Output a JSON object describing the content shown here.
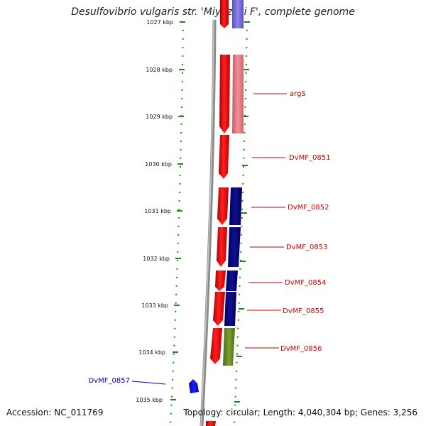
{
  "title": "Desulfovibrio vulgaris str. 'Miyazaki F', complete genome",
  "accession_text": "Accession: NC_011769",
  "summary_text": "Topology: circular; Length: 4,040,304 bp; Genes: 3,256",
  "axis_ticks": [
    "1027 kbp",
    "1028 kbp",
    "1029 kbp",
    "1030 kbp",
    "1031 kbp",
    "1032 kbp",
    "1033 kbp",
    "1034 kbp",
    "1035 kbp"
  ],
  "gene_labels": [
    {
      "name": "argS",
      "color": "#cc0000"
    },
    {
      "name": "DvMF_0851",
      "color": "#cc0000"
    },
    {
      "name": "DvMF_0852",
      "color": "#cc0000"
    },
    {
      "name": "DvMF_0853",
      "color": "#cc0000"
    },
    {
      "name": "DvMF_0854",
      "color": "#cc0000"
    },
    {
      "name": "DvMF_0855",
      "color": "#cc0000"
    },
    {
      "name": "DvMF_0856",
      "color": "#cc0000"
    },
    {
      "name": "DvMF_0857",
      "color": "#0000cc"
    }
  ],
  "colors": {
    "forward_gene": "#ff1a1a",
    "cds_feature": "#000080",
    "pseudo_or_light": "#e57a84",
    "other_feature": "#6b8e23",
    "reverse_gene": "#0000ff",
    "backbone": "#888888",
    "tick": "#1a8a1a"
  }
}
